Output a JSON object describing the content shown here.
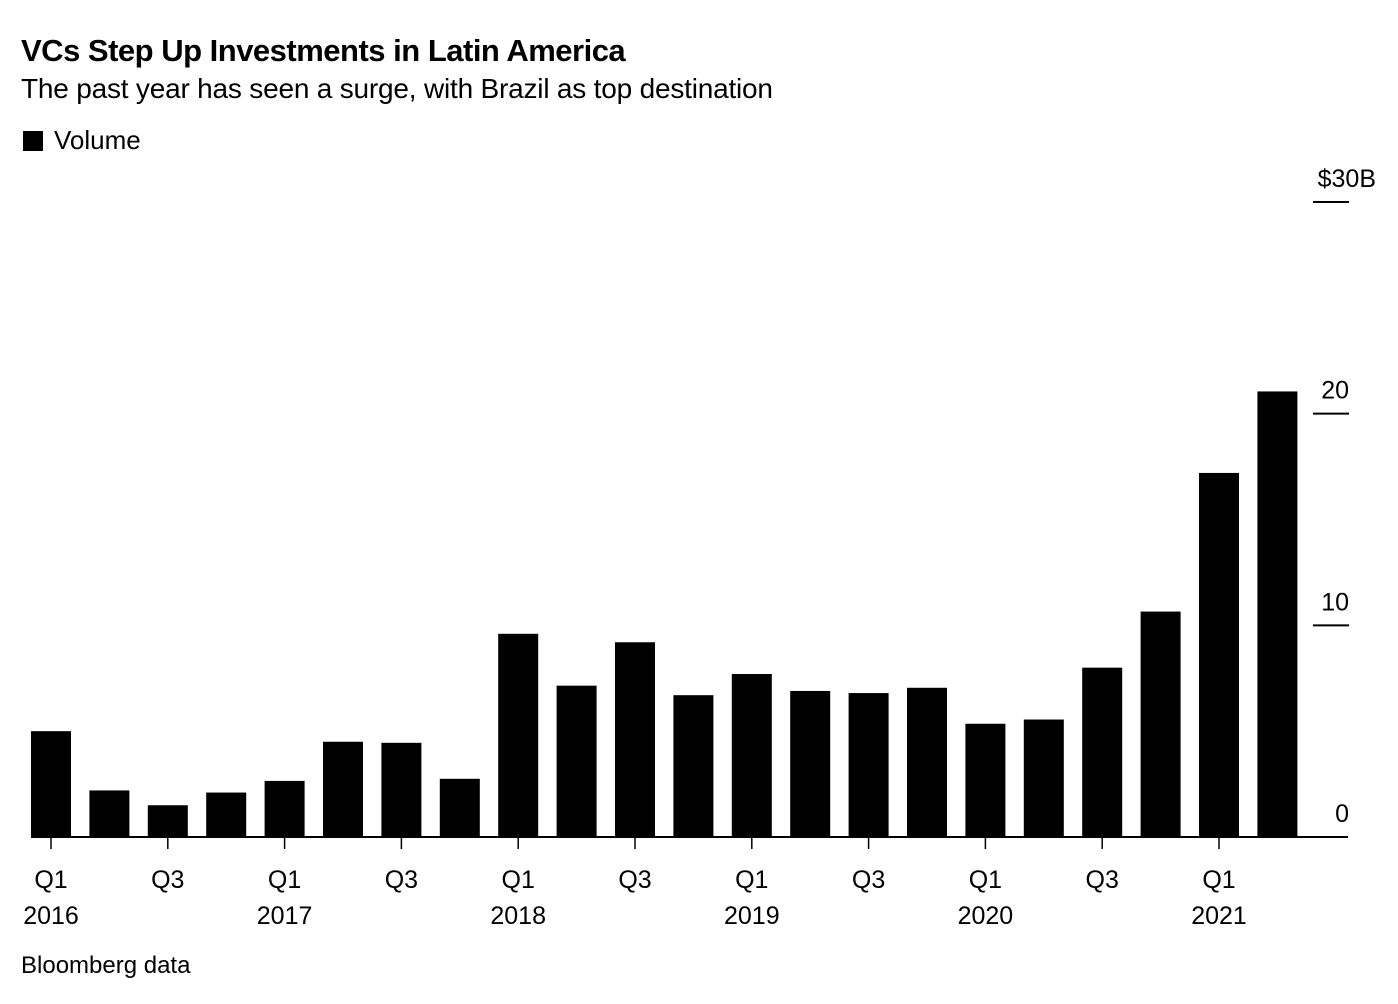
{
  "title": "VCs Step Up Investments in Latin America",
  "subtitle": "The past year has seen a surge, with Brazil as top destination",
  "source": "Bloomberg data",
  "legend": [
    {
      "label": "Volume",
      "color": "#000000"
    }
  ],
  "chart_data": {
    "type": "bar",
    "title": "VCs Step Up Investments in Latin America",
    "subtitle": "The past year has seen a surge, with Brazil as top destination",
    "xlabel": "",
    "ylabel": "",
    "y_unit_label": "$30B",
    "ylim": [
      0,
      30
    ],
    "y_ticks": [
      0,
      10,
      20,
      30
    ],
    "y_tick_labels": [
      "0",
      "10",
      "20",
      "$30B"
    ],
    "y_axis_side": "right",
    "grid": false,
    "legend_position": "top-left",
    "categories": [
      "Q1 2016",
      "Q2 2016",
      "Q3 2016",
      "Q4 2016",
      "Q1 2017",
      "Q2 2017",
      "Q3 2017",
      "Q4 2017",
      "Q1 2018",
      "Q2 2018",
      "Q3 2018",
      "Q4 2018",
      "Q1 2019",
      "Q2 2019",
      "Q3 2019",
      "Q4 2019",
      "Q1 2020",
      "Q2 2020",
      "Q3 2020",
      "Q4 2020",
      "Q1 2021",
      "Q2 2021"
    ],
    "x_tick_labels": [
      {
        "index": 0,
        "quarter": "Q1",
        "year": "2016"
      },
      {
        "index": 2,
        "quarter": "Q3",
        "year": ""
      },
      {
        "index": 4,
        "quarter": "Q1",
        "year": "2017"
      },
      {
        "index": 6,
        "quarter": "Q3",
        "year": ""
      },
      {
        "index": 8,
        "quarter": "Q1",
        "year": "2018"
      },
      {
        "index": 10,
        "quarter": "Q3",
        "year": ""
      },
      {
        "index": 12,
        "quarter": "Q1",
        "year": "2019"
      },
      {
        "index": 14,
        "quarter": "Q3",
        "year": ""
      },
      {
        "index": 16,
        "quarter": "Q1",
        "year": "2020"
      },
      {
        "index": 18,
        "quarter": "Q3",
        "year": ""
      },
      {
        "index": 20,
        "quarter": "Q1",
        "year": "2021"
      }
    ],
    "series": [
      {
        "name": "Volume",
        "color": "#000000",
        "values": [
          5.0,
          2.2,
          1.5,
          2.1,
          2.65,
          4.5,
          4.45,
          2.75,
          9.6,
          7.15,
          9.2,
          6.7,
          7.7,
          6.9,
          6.8,
          7.05,
          5.35,
          5.55,
          8.0,
          10.65,
          17.2,
          21.05
        ]
      }
    ]
  }
}
